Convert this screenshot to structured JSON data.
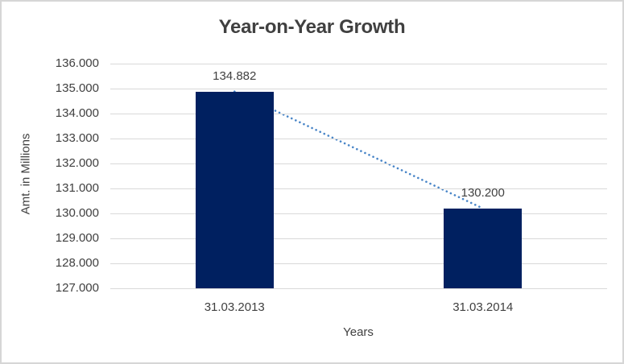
{
  "window": {
    "background": "#ffffff",
    "border_color": "#d6d6d6"
  },
  "chart_data": {
    "type": "bar",
    "title": "Year-on-Year Growth",
    "xlabel": "Years",
    "ylabel": "Amt. in Millions",
    "categories": [
      "31.03.2013",
      "31.03.2014"
    ],
    "series": [
      {
        "name": "Amt. in Millions",
        "values": [
          134.882,
          130.2
        ],
        "value_labels": [
          "134.882",
          "130.200"
        ],
        "color": "#002060"
      }
    ],
    "ylim": [
      127,
      136
    ],
    "ytick_step": 1,
    "ytick_labels_top_to_bottom": [
      "136.000",
      "135.000",
      "134.000",
      "133.000",
      "132.000",
      "131.000",
      "130.000",
      "129.000",
      "128.000",
      "127.000"
    ],
    "grid": "horizontal",
    "legend_position": "none",
    "trendline": {
      "type": "linear",
      "style": "dotted",
      "color": "#4a86c8",
      "from_value": 134.882,
      "to_value": 130.2
    },
    "colors": {
      "title_text": "#404040",
      "axis_text": "#404040",
      "gridline": "#d9d9d9",
      "bar": "#002060"
    }
  }
}
